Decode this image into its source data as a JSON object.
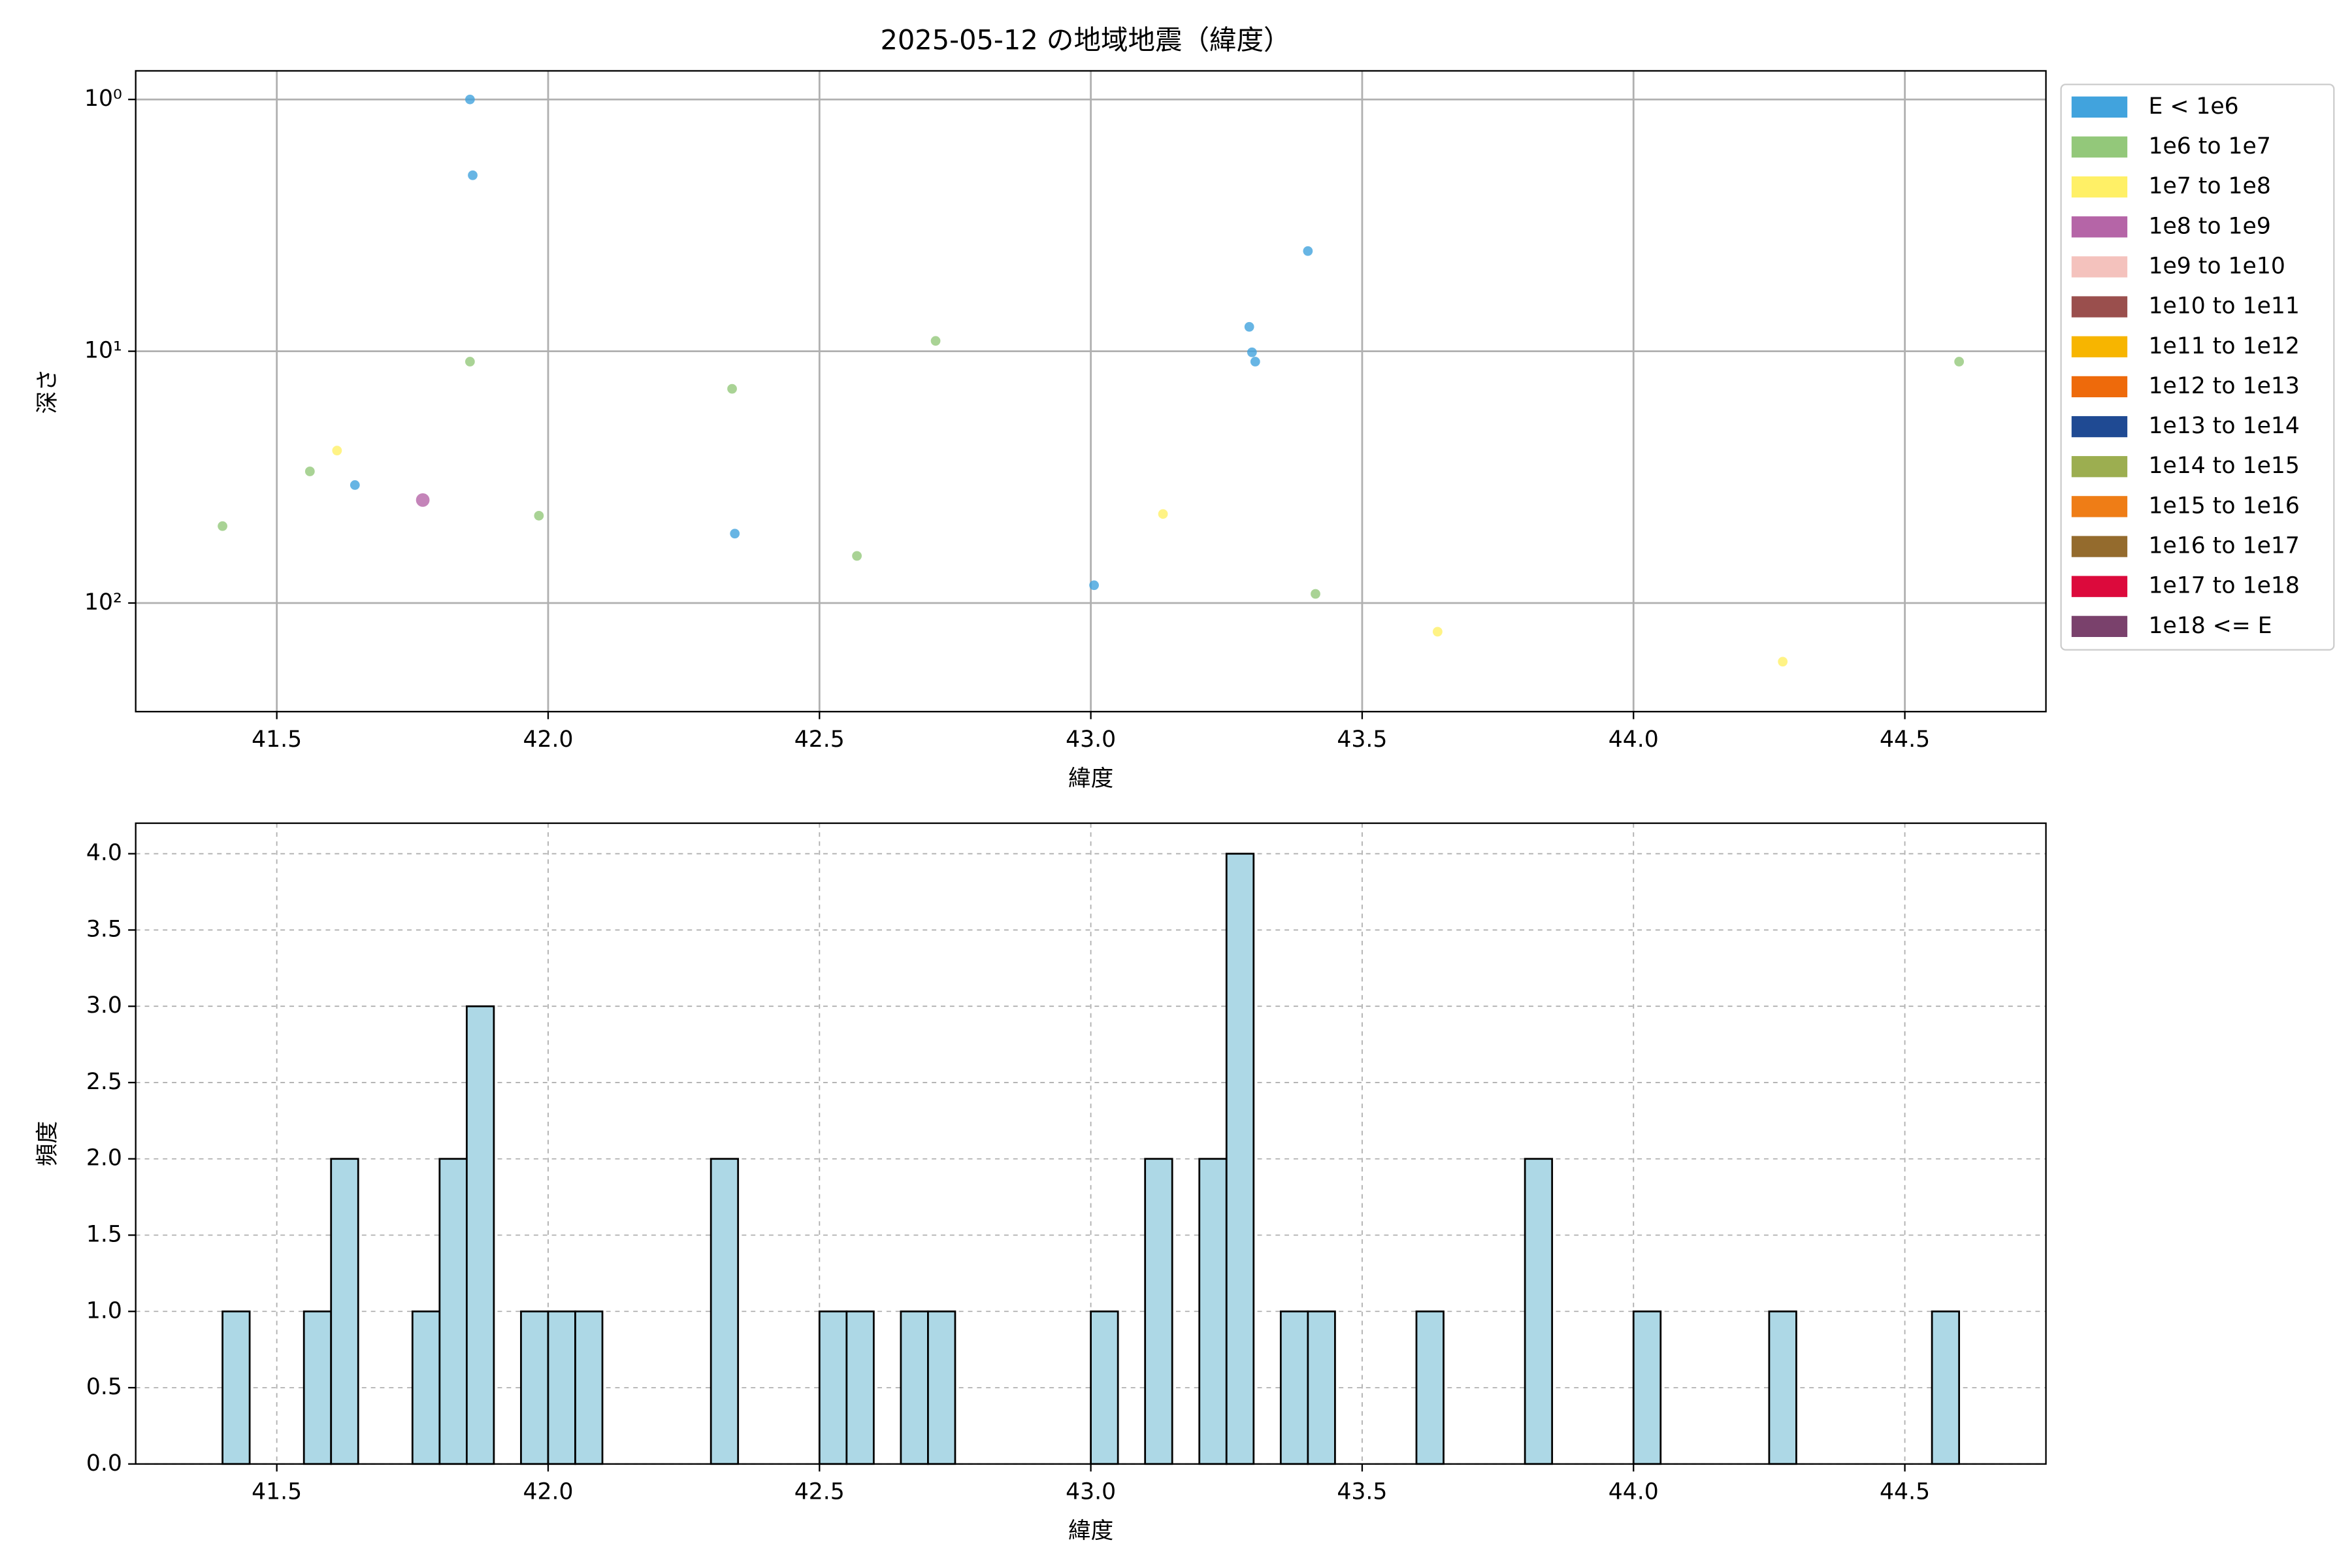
{
  "chart_data": [
    {
      "type": "scatter",
      "title": "2025-05-12 の地域地震（緯度）",
      "x_label": "緯度",
      "y_label": "深さ",
      "log_y": true,
      "y_inverted": true,
      "grid": true,
      "legend": "outside right",
      "xlim": [
        41.24,
        44.76
      ],
      "ylim": [
        0.77,
        270
      ],
      "xticks": [
        41.5,
        {
          "value": 42.0,
          "label": "42.0"
        },
        42.5,
        {
          "value": 43.0,
          "label": "43.0"
        },
        43.5,
        {
          "value": 44.0,
          "label": "44.0"
        },
        44.5
      ],
      "yticks": [
        {
          "value": 1,
          "label": "10⁰"
        },
        {
          "value": 10,
          "label": "10¹"
        },
        {
          "value": 100,
          "label": "10²"
        }
      ],
      "series": [
        {
          "name": "E < 1e6",
          "color": "#41a3dd",
          "x": [
            41.856,
            41.861,
            41.644,
            42.344,
            43.006,
            43.292,
            43.297,
            43.303,
            43.4
          ],
          "values": [
            1.0,
            2.0,
            34,
            53,
            85,
            8.0,
            10.1,
            11.0,
            4.0
          ]
        },
        {
          "name": "1e6 to 1e7",
          "color": "#93c87a",
          "x": [
            41.4,
            41.561,
            41.856,
            41.983,
            42.339,
            42.569,
            42.714,
            43.414,
            44.6
          ],
          "values": [
            49.5,
            30,
            11.0,
            45,
            14.1,
            65,
            9.1,
            92,
            11.0
          ]
        },
        {
          "name": "1e7 to 1e8",
          "color": "#fff066",
          "x": [
            41.611,
            43.133,
            43.639,
            44.275
          ],
          "values": [
            24.8,
            44.3,
            130,
            171
          ]
        },
        {
          "name": "1e8 to 1e9",
          "color": "#b565a7",
          "x": [
            41.769
          ],
          "values": [
            39
          ]
        },
        {
          "name": "1e9 to 1e10",
          "color": "#f4c2bd",
          "x": [],
          "values": []
        },
        {
          "name": "1e10 to 1e11",
          "color": "#9a4f4d",
          "x": [],
          "values": []
        },
        {
          "name": "1e11 to 1e12",
          "color": "#f7b500",
          "x": [],
          "values": []
        },
        {
          "name": "1e12 to 1e13",
          "color": "#ee6a0b",
          "x": [],
          "values": []
        },
        {
          "name": "1e13 to 1e14",
          "color": "#1f4a93",
          "x": [],
          "values": []
        },
        {
          "name": "1e14 to 1e15",
          "color": "#9cae50",
          "x": [],
          "values": []
        },
        {
          "name": "1e15 to 1e16",
          "color": "#ef7d16",
          "x": [],
          "values": []
        },
        {
          "name": "1e16 to 1e17",
          "color": "#946b2d",
          "x": [],
          "values": []
        },
        {
          "name": "1e17 to 1e18",
          "color": "#dc0a3c",
          "x": [],
          "values": []
        },
        {
          "name": "1e18 <= E",
          "color": "#7a416c",
          "x": [],
          "values": []
        }
      ]
    },
    {
      "type": "histogram",
      "x_label": "緯度",
      "y_label": "頻度",
      "grid": "dashed",
      "color": "#add8e6",
      "edgecolor": "#000000",
      "xlim": [
        41.24,
        44.76
      ],
      "ylim": [
        0,
        4.2
      ],
      "xticks": [
        41.5,
        {
          "value": 42.0,
          "label": "42.0"
        },
        42.5,
        {
          "value": 43.0,
          "label": "43.0"
        },
        43.5,
        {
          "value": 44.0,
          "label": "44.0"
        },
        44.5
      ],
      "yticks": [
        {
          "value": 0,
          "label": "0.0"
        },
        0.5,
        {
          "value": 1,
          "label": "1.0"
        },
        1.5,
        {
          "value": 2,
          "label": "2.0"
        },
        2.5,
        {
          "value": 3,
          "label": "3.0"
        },
        3.5,
        {
          "value": 4,
          "label": "4.0"
        }
      ],
      "bins": [
        41.4,
        41.45,
        41.5,
        41.55,
        41.6,
        41.65,
        41.7,
        41.75,
        41.8,
        41.85,
        41.9,
        41.95,
        42.0,
        42.05,
        42.1,
        42.15,
        42.2,
        42.25,
        42.3,
        42.35,
        42.4,
        42.45,
        42.5,
        42.55,
        42.6,
        42.65,
        42.7,
        42.75,
        42.8,
        42.85,
        42.9,
        42.95,
        43.0,
        43.05,
        43.1,
        43.15,
        43.2,
        43.25,
        43.3,
        43.35,
        43.4,
        43.45,
        43.5,
        43.55,
        43.6,
        43.65,
        43.7,
        43.75,
        43.8,
        43.85,
        43.9,
        43.95,
        44.0,
        44.05,
        44.1,
        44.15,
        44.2,
        44.25,
        44.3,
        44.35,
        44.4,
        44.45,
        44.5,
        44.55,
        44.6
      ],
      "values": [
        1,
        0,
        0,
        1,
        2,
        0,
        0,
        1,
        2,
        3,
        0,
        1,
        1,
        1,
        0,
        0,
        0,
        0,
        2,
        0,
        0,
        0,
        1,
        1,
        0,
        1,
        1,
        0,
        0,
        0,
        0,
        0,
        1,
        0,
        2,
        0,
        2,
        4,
        0,
        1,
        1,
        0,
        0,
        0,
        1,
        0,
        0,
        0,
        2,
        0,
        0,
        0,
        1,
        0,
        0,
        0,
        0,
        1,
        0,
        0,
        0,
        0,
        0,
        1
      ]
    }
  ]
}
